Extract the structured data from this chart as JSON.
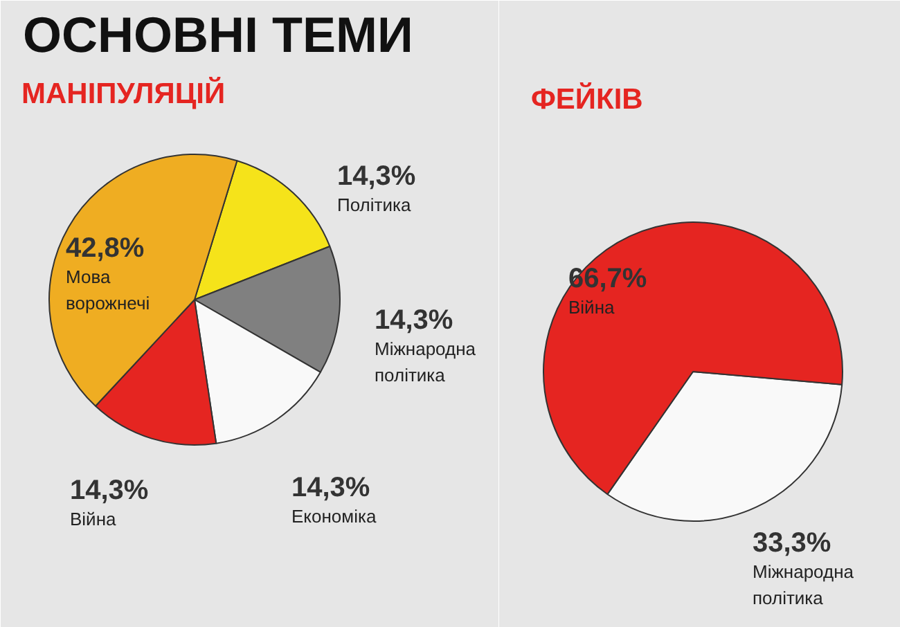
{
  "chart_data": [
    {
      "type": "pie",
      "title": "ОСНОВНІ ТЕМИ",
      "subtitle": "МАНІПУЛЯЦІЙ",
      "categories": [
        "Політика",
        "Міжнародна політика",
        "Економіка",
        "Війна",
        "Мова ворожнечі"
      ],
      "values": [
        14.3,
        14.3,
        14.3,
        14.3,
        42.8
      ],
      "colors": [
        "#f5e31a",
        "#808080",
        "#f9f9f9",
        "#e52521",
        "#efad22"
      ],
      "value_labels": [
        "14,3%",
        "14,3%",
        "14,3%",
        "14,3%",
        "42,8%"
      ]
    },
    {
      "type": "pie",
      "subtitle": "ФЕЙКІВ",
      "categories": [
        "Міжнародна політика",
        "Війна"
      ],
      "values": [
        33.3,
        66.7
      ],
      "colors": [
        "#f9f9f9",
        "#e52521"
      ],
      "value_labels": [
        "33,3%",
        "66,7%"
      ]
    }
  ]
}
